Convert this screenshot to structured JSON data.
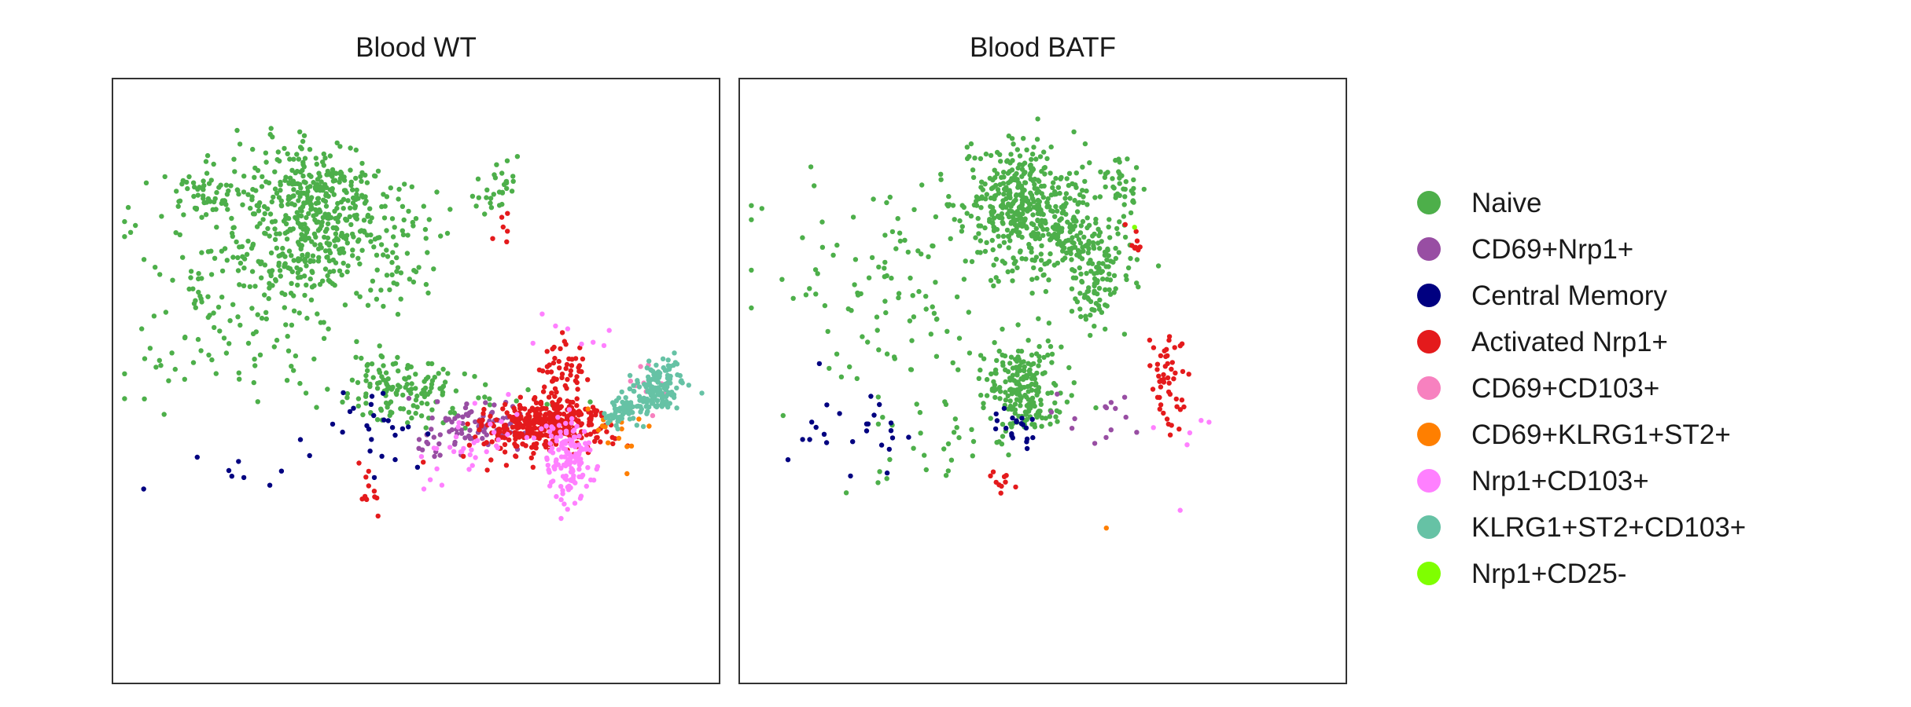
{
  "chart_data": {
    "type": "scatter",
    "legend_position": "right",
    "grid": false,
    "axes_visible": false,
    "xlim": [
      0,
      100
    ],
    "ylim": [
      0,
      100
    ],
    "legend": [
      {
        "name": "Naive",
        "color": "#4daf4a"
      },
      {
        "name": "CD69+Nrp1+",
        "color": "#984ea3"
      },
      {
        "name": "Central Memory",
        "color": "#000080"
      },
      {
        "name": "Activated Nrp1+",
        "color": "#e41a1c"
      },
      {
        "name": "CD69+CD103+",
        "color": "#f781bf"
      },
      {
        "name": "CD69+KLRG1+ST2+",
        "color": "#ff7f00"
      },
      {
        "name": "Nrp1+CD103+",
        "color": "#ff80ff"
      },
      {
        "name": "KLRG1+ST2+CD103+",
        "color": "#66c2a5"
      },
      {
        "name": "Nrp1+CD25-",
        "color": "#7fff00"
      }
    ],
    "panels": [
      {
        "title": "Blood WT",
        "clusters": [
          {
            "series": "Naive",
            "cx": 33,
            "cy": 80,
            "sx": 6,
            "sy": 5,
            "n": 320
          },
          {
            "series": "Naive",
            "cx": 32,
            "cy": 72,
            "sx": 5,
            "sy": 4,
            "n": 120
          },
          {
            "series": "Naive",
            "cx": 16,
            "cy": 81,
            "sx": 3,
            "sy": 2.5,
            "n": 60
          },
          {
            "series": "Naive",
            "cx": 63,
            "cy": 82,
            "sx": 2,
            "sy": 2,
            "n": 30
          },
          {
            "series": "Naive",
            "cx": 20,
            "cy": 65,
            "sx": 10,
            "sy": 9,
            "n": 170
          },
          {
            "series": "Naive",
            "cx": 47,
            "cy": 66,
            "sx": 2,
            "sy": 3,
            "n": 25
          },
          {
            "series": "Naive",
            "cx": 46,
            "cy": 76,
            "sx": 4,
            "sy": 4,
            "n": 40
          },
          {
            "series": "Naive",
            "cx": 47,
            "cy": 49,
            "sx": 5,
            "sy": 3,
            "n": 110
          },
          {
            "series": "Naive",
            "cx": 55,
            "cy": 46,
            "sx": 12,
            "sy": 3,
            "n": 40
          },
          {
            "series": "CD69+Nrp1+",
            "cx": 60,
            "cy": 43,
            "sx": 4,
            "sy": 1.8,
            "n": 75
          },
          {
            "series": "CD69+Nrp1+",
            "cx": 53,
            "cy": 40,
            "sx": 2,
            "sy": 1.5,
            "n": 14
          },
          {
            "series": "Central Memory",
            "cx": 45,
            "cy": 42,
            "sx": 4,
            "sy": 3,
            "n": 24
          },
          {
            "series": "Central Memory",
            "cx": 22,
            "cy": 35,
            "sx": 10,
            "sy": 3,
            "n": 10
          },
          {
            "series": "Activated Nrp1+",
            "cx": 72,
            "cy": 43,
            "sx": 5,
            "sy": 1.8,
            "n": 360
          },
          {
            "series": "Activated Nrp1+",
            "cx": 74,
            "cy": 52,
            "sx": 2,
            "sy": 2,
            "n": 50
          },
          {
            "series": "Activated Nrp1+",
            "cx": 65,
            "cy": 40,
            "sx": 5,
            "sy": 2.5,
            "n": 40
          },
          {
            "series": "Activated Nrp1+",
            "cx": 42,
            "cy": 32,
            "sx": 1.2,
            "sy": 3,
            "n": 12
          },
          {
            "series": "Activated Nrp1+",
            "cx": 65,
            "cy": 75,
            "sx": 0.8,
            "sy": 1.5,
            "n": 6
          },
          {
            "series": "CD69+CD103+",
            "cx": 88,
            "cy": 49,
            "sx": 1.5,
            "sy": 1.5,
            "n": 14
          },
          {
            "series": "CD69+KLRG1+ST2+",
            "cx": 83,
            "cy": 42,
            "sx": 2.5,
            "sy": 1.5,
            "n": 14
          },
          {
            "series": "CD69+KLRG1+ST2+",
            "cx": 84,
            "cy": 34,
            "sx": 0.5,
            "sy": 0.5,
            "n": 1
          },
          {
            "series": "Nrp1+CD103+",
            "cx": 75,
            "cy": 37,
            "sx": 2,
            "sy": 3.5,
            "n": 130
          },
          {
            "series": "Nrp1+CD103+",
            "cx": 62,
            "cy": 39,
            "sx": 6,
            "sy": 3,
            "n": 40
          },
          {
            "series": "Nrp1+CD103+",
            "cx": 76,
            "cy": 57,
            "sx": 3,
            "sy": 3,
            "n": 8
          },
          {
            "series": "KLRG1+ST2+CD103+",
            "cx": 90,
            "cy": 49,
            "sx": 2,
            "sy": 1.7,
            "n": 130
          },
          {
            "series": "KLRG1+ST2+CD103+",
            "cx": 84,
            "cy": 45,
            "sx": 2,
            "sy": 1.5,
            "n": 60
          }
        ]
      },
      {
        "title": "Blood BATF",
        "clusters": [
          {
            "series": "Naive",
            "cx": 47,
            "cy": 79,
            "sx": 5,
            "sy": 5,
            "n": 420
          },
          {
            "series": "Naive",
            "cx": 57,
            "cy": 73,
            "sx": 4,
            "sy": 4,
            "n": 130
          },
          {
            "series": "Naive",
            "cx": 59,
            "cy": 65,
            "sx": 2,
            "sy": 3,
            "n": 60
          },
          {
            "series": "Naive",
            "cx": 63,
            "cy": 82,
            "sx": 2,
            "sy": 2,
            "n": 35
          },
          {
            "series": "Naive",
            "cx": 47,
            "cy": 49,
            "sx": 3,
            "sy": 4,
            "n": 200
          },
          {
            "series": "Naive",
            "cx": 27,
            "cy": 65,
            "sx": 12,
            "sy": 10,
            "n": 130
          },
          {
            "series": "Naive",
            "cx": 34,
            "cy": 41,
            "sx": 8,
            "sy": 4,
            "n": 30
          },
          {
            "series": "CD69+Nrp1+",
            "cx": 60,
            "cy": 44,
            "sx": 4,
            "sy": 2,
            "n": 14
          },
          {
            "series": "Central Memory",
            "cx": 45,
            "cy": 42,
            "sx": 1.5,
            "sy": 2,
            "n": 20
          },
          {
            "series": "Central Memory",
            "cx": 18,
            "cy": 42,
            "sx": 5,
            "sy": 4,
            "n": 25
          },
          {
            "series": "Activated Nrp1+",
            "cx": 70,
            "cy": 50,
            "sx": 1.5,
            "sy": 4,
            "n": 50
          },
          {
            "series": "Activated Nrp1+",
            "cx": 43,
            "cy": 33,
            "sx": 1,
            "sy": 1.5,
            "n": 10
          },
          {
            "series": "Activated Nrp1+",
            "cx": 65,
            "cy": 73,
            "sx": 1,
            "sy": 2,
            "n": 8
          },
          {
            "series": "Nrp1+CD103+",
            "cx": 73,
            "cy": 37,
            "sx": 3,
            "sy": 5,
            "n": 6
          },
          {
            "series": "Nrp1+CD25-",
            "cx": 65,
            "cy": 75,
            "sx": 0.5,
            "sy": 0.5,
            "n": 1
          },
          {
            "series": "CD69+KLRG1+ST2+",
            "cx": 61,
            "cy": 26,
            "sx": 0.5,
            "sy": 0.5,
            "n": 1
          }
        ]
      }
    ]
  }
}
